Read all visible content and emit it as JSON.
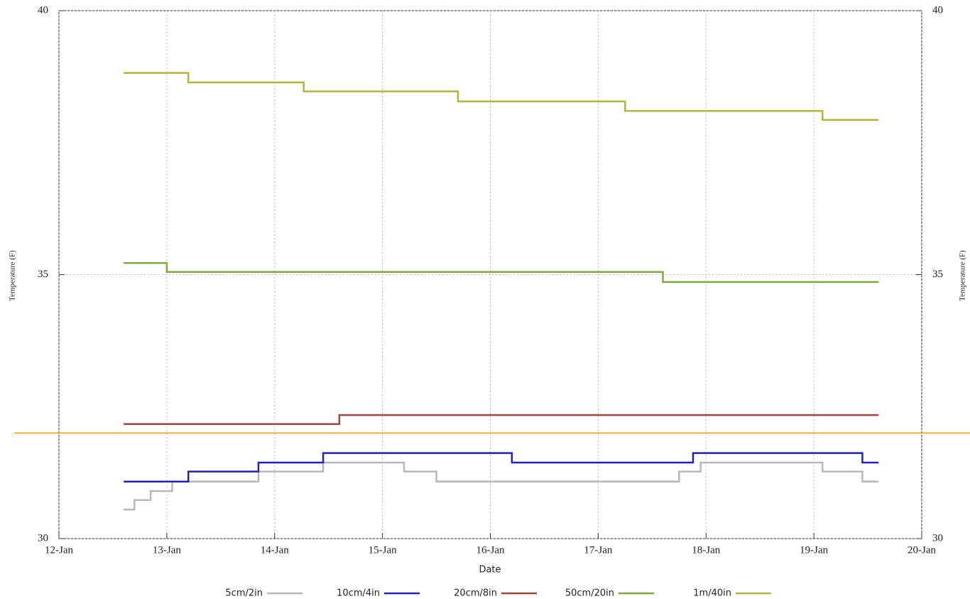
{
  "chart_data": {
    "type": "line",
    "x_label": "Date",
    "y_label": "Temperature (F)",
    "xlim": [
      12,
      20
    ],
    "xticks": [
      {
        "value": 12,
        "label": "12-Jan"
      },
      {
        "value": 13,
        "label": "13-Jan"
      },
      {
        "value": 14,
        "label": "14-Jan"
      },
      {
        "value": 15,
        "label": "15-Jan"
      },
      {
        "value": 16,
        "label": "16-Jan"
      },
      {
        "value": 17,
        "label": "17-Jan"
      },
      {
        "value": 18,
        "label": "18-Jan"
      },
      {
        "value": 19,
        "label": "19-Jan"
      },
      {
        "value": 20,
        "label": "20-Jan"
      }
    ],
    "ylim": [
      30,
      40
    ],
    "yticks": [
      30,
      35,
      40
    ],
    "grid": true,
    "reference_line": {
      "value": 32,
      "color": "#ff9900"
    },
    "legend": "bottom",
    "series": [
      {
        "name": "5cm/2in",
        "color": "#b8b8b8",
        "x": [
          12.6,
          12.7,
          12.7,
          12.85,
          12.85,
          13.05,
          13.05,
          13.85,
          13.85,
          14.45,
          14.45,
          15.2,
          15.2,
          15.5,
          15.5,
          17.75,
          17.75,
          17.95,
          17.95,
          19.08,
          19.08,
          19.45,
          19.45,
          19.6
        ],
        "values": [
          30.55,
          30.55,
          30.73,
          30.73,
          30.9,
          30.9,
          31.08,
          31.08,
          31.27,
          31.27,
          31.44,
          31.44,
          31.27,
          31.27,
          31.08,
          31.08,
          31.27,
          31.27,
          31.44,
          31.44,
          31.27,
          31.27,
          31.08,
          31.08
        ]
      },
      {
        "name": "10cm/4in",
        "color": "#2222bb",
        "x": [
          12.6,
          13.2,
          13.2,
          13.85,
          13.85,
          14.45,
          14.45,
          16.2,
          16.2,
          17.88,
          17.88,
          19.45,
          19.45,
          19.6
        ],
        "values": [
          31.08,
          31.08,
          31.27,
          31.27,
          31.44,
          31.44,
          31.62,
          31.62,
          31.44,
          31.44,
          31.62,
          31.62,
          31.44,
          31.44
        ]
      },
      {
        "name": "20cm/8in",
        "color": "#a0463c",
        "x": [
          12.6,
          14.6,
          14.6,
          19.6
        ],
        "values": [
          32.17,
          32.17,
          32.34,
          32.34
        ]
      },
      {
        "name": "50cm/20in",
        "color": "#7aab3a",
        "x": [
          12.6,
          13.0,
          13.0,
          17.6,
          17.6,
          19.6
        ],
        "values": [
          35.22,
          35.22,
          35.05,
          35.05,
          34.86,
          34.86
        ]
      },
      {
        "name": "1m/40in",
        "color": "#b5b53a",
        "x": [
          12.6,
          13.2,
          13.2,
          14.27,
          14.27,
          15.7,
          15.7,
          17.25,
          17.25,
          19.08,
          19.08,
          19.6
        ],
        "values": [
          38.82,
          38.82,
          38.64,
          38.64,
          38.47,
          38.47,
          38.28,
          38.28,
          38.1,
          38.1,
          37.93,
          37.93
        ]
      }
    ]
  }
}
